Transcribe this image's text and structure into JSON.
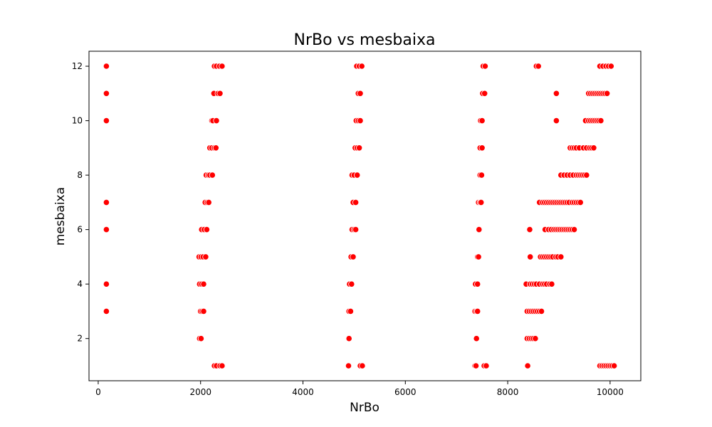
{
  "chart_data": {
    "type": "scatter",
    "title": "NrBo vs mesbaixa",
    "xlabel": "NrBo",
    "ylabel": "mesbaixa",
    "xlim": [
      -180,
      10600
    ],
    "ylim": [
      0.45,
      12.55
    ],
    "xticks": [
      0,
      2000,
      4000,
      6000,
      8000,
      10000
    ],
    "yticks": [
      2,
      4,
      6,
      8,
      10,
      12
    ],
    "grid": false,
    "legend": "none",
    "point_color": "#ff0000",
    "point_edge_color": "#ffffff",
    "series": [
      {
        "points": [
          [
            160,
            12
          ],
          [
            160,
            11
          ],
          [
            160,
            10
          ],
          [
            160,
            7
          ],
          [
            160,
            6
          ],
          [
            160,
            4
          ],
          [
            160,
            3
          ],
          [
            2270,
            12
          ],
          [
            2310,
            12
          ],
          [
            2370,
            12
          ],
          [
            2420,
            12
          ],
          [
            2260,
            11
          ],
          [
            2340,
            11
          ],
          [
            2380,
            11
          ],
          [
            2220,
            10
          ],
          [
            2240,
            10
          ],
          [
            2310,
            10
          ],
          [
            2180,
            9
          ],
          [
            2220,
            9
          ],
          [
            2270,
            9
          ],
          [
            2300,
            9
          ],
          [
            2110,
            8
          ],
          [
            2150,
            8
          ],
          [
            2180,
            8
          ],
          [
            2230,
            8
          ],
          [
            2090,
            7
          ],
          [
            2130,
            7
          ],
          [
            2160,
            7
          ],
          [
            2020,
            6
          ],
          [
            2070,
            6
          ],
          [
            2120,
            6
          ],
          [
            1970,
            5
          ],
          [
            2010,
            5
          ],
          [
            2050,
            5
          ],
          [
            2100,
            5
          ],
          [
            1980,
            4
          ],
          [
            2020,
            4
          ],
          [
            2060,
            4
          ],
          [
            2000,
            3
          ],
          [
            2030,
            3
          ],
          [
            2060,
            3
          ],
          [
            1980,
            2
          ],
          [
            2010,
            2
          ],
          [
            2270,
            1
          ],
          [
            2310,
            1
          ],
          [
            2380,
            1
          ],
          [
            2420,
            1
          ],
          [
            5050,
            12
          ],
          [
            5100,
            12
          ],
          [
            5150,
            12
          ],
          [
            5080,
            11
          ],
          [
            5120,
            11
          ],
          [
            5040,
            10
          ],
          [
            5080,
            10
          ],
          [
            5120,
            10
          ],
          [
            5020,
            9
          ],
          [
            5060,
            9
          ],
          [
            5100,
            9
          ],
          [
            4960,
            8
          ],
          [
            5000,
            8
          ],
          [
            5060,
            8
          ],
          [
            4980,
            7
          ],
          [
            5030,
            7
          ],
          [
            4960,
            6
          ],
          [
            5000,
            6
          ],
          [
            5030,
            6
          ],
          [
            4940,
            5
          ],
          [
            4980,
            5
          ],
          [
            4910,
            4
          ],
          [
            4950,
            4
          ],
          [
            4900,
            3
          ],
          [
            4930,
            3
          ],
          [
            4900,
            2
          ],
          [
            4890,
            1
          ],
          [
            5120,
            1
          ],
          [
            5160,
            1
          ],
          [
            7520,
            12
          ],
          [
            7560,
            12
          ],
          [
            7510,
            11
          ],
          [
            7550,
            11
          ],
          [
            7470,
            10
          ],
          [
            7500,
            10
          ],
          [
            7460,
            9
          ],
          [
            7500,
            9
          ],
          [
            7460,
            8
          ],
          [
            7490,
            8
          ],
          [
            7430,
            7
          ],
          [
            7460,
            7
          ],
          [
            7480,
            7
          ],
          [
            7440,
            6
          ],
          [
            7410,
            5
          ],
          [
            7430,
            5
          ],
          [
            7370,
            4
          ],
          [
            7410,
            4
          ],
          [
            7360,
            3
          ],
          [
            7390,
            3
          ],
          [
            7410,
            3
          ],
          [
            7390,
            2
          ],
          [
            7360,
            1
          ],
          [
            7380,
            1
          ],
          [
            7540,
            1
          ],
          [
            7580,
            1
          ],
          [
            8560,
            12
          ],
          [
            8600,
            12
          ],
          [
            8950,
            11
          ],
          [
            9580,
            11
          ],
          [
            9620,
            11
          ],
          [
            9660,
            11
          ],
          [
            9700,
            11
          ],
          [
            9740,
            11
          ],
          [
            9780,
            11
          ],
          [
            9820,
            11
          ],
          [
            9860,
            11
          ],
          [
            9900,
            11
          ],
          [
            9940,
            11
          ],
          [
            8950,
            10
          ],
          [
            9520,
            10
          ],
          [
            9580,
            10
          ],
          [
            9620,
            10
          ],
          [
            9660,
            10
          ],
          [
            9700,
            10
          ],
          [
            9740,
            10
          ],
          [
            9780,
            10
          ],
          [
            9820,
            10
          ],
          [
            9800,
            12
          ],
          [
            9860,
            12
          ],
          [
            9920,
            12
          ],
          [
            9970,
            12
          ],
          [
            10020,
            12
          ],
          [
            9220,
            9
          ],
          [
            9260,
            9
          ],
          [
            9300,
            9
          ],
          [
            9340,
            9
          ],
          [
            9400,
            9
          ],
          [
            9480,
            9
          ],
          [
            9540,
            9
          ],
          [
            9600,
            9
          ],
          [
            9640,
            9
          ],
          [
            9680,
            9
          ],
          [
            9040,
            8
          ],
          [
            9100,
            8
          ],
          [
            9160,
            8
          ],
          [
            9220,
            8
          ],
          [
            9280,
            8
          ],
          [
            9340,
            8
          ],
          [
            9380,
            8
          ],
          [
            9420,
            8
          ],
          [
            9460,
            8
          ],
          [
            9500,
            8
          ],
          [
            9540,
            8
          ],
          [
            8620,
            7
          ],
          [
            8680,
            7
          ],
          [
            8720,
            7
          ],
          [
            8760,
            7
          ],
          [
            8800,
            7
          ],
          [
            8840,
            7
          ],
          [
            8880,
            7
          ],
          [
            8920,
            7
          ],
          [
            8960,
            7
          ],
          [
            9000,
            7
          ],
          [
            9040,
            7
          ],
          [
            9080,
            7
          ],
          [
            9120,
            7
          ],
          [
            9160,
            7
          ],
          [
            9200,
            7
          ],
          [
            9260,
            7
          ],
          [
            9300,
            7
          ],
          [
            9340,
            7
          ],
          [
            9380,
            7
          ],
          [
            9420,
            7
          ],
          [
            8430,
            6
          ],
          [
            8730,
            6
          ],
          [
            8800,
            6
          ],
          [
            8850,
            6
          ],
          [
            8900,
            6
          ],
          [
            8940,
            6
          ],
          [
            8980,
            6
          ],
          [
            9020,
            6
          ],
          [
            9060,
            6
          ],
          [
            9100,
            6
          ],
          [
            9140,
            6
          ],
          [
            9180,
            6
          ],
          [
            9220,
            6
          ],
          [
            9260,
            6
          ],
          [
            9300,
            6
          ],
          [
            8440,
            5
          ],
          [
            8640,
            5
          ],
          [
            8680,
            5
          ],
          [
            8720,
            5
          ],
          [
            8760,
            5
          ],
          [
            8800,
            5
          ],
          [
            8840,
            5
          ],
          [
            8880,
            5
          ],
          [
            8940,
            5
          ],
          [
            8980,
            5
          ],
          [
            9040,
            5
          ],
          [
            8360,
            4
          ],
          [
            8440,
            4
          ],
          [
            8480,
            4
          ],
          [
            8520,
            4
          ],
          [
            8560,
            4
          ],
          [
            8620,
            4
          ],
          [
            8680,
            4
          ],
          [
            8720,
            4
          ],
          [
            8760,
            4
          ],
          [
            8820,
            4
          ],
          [
            8860,
            4
          ],
          [
            8380,
            3
          ],
          [
            8420,
            3
          ],
          [
            8460,
            3
          ],
          [
            8500,
            3
          ],
          [
            8540,
            3
          ],
          [
            8580,
            3
          ],
          [
            8620,
            3
          ],
          [
            8660,
            3
          ],
          [
            8380,
            2
          ],
          [
            8420,
            2
          ],
          [
            8460,
            2
          ],
          [
            8500,
            2
          ],
          [
            8540,
            2
          ],
          [
            8390,
            1
          ],
          [
            9800,
            1
          ],
          [
            9840,
            1
          ],
          [
            9880,
            1
          ],
          [
            9920,
            1
          ],
          [
            9960,
            1
          ],
          [
            10000,
            1
          ],
          [
            10040,
            1
          ],
          [
            10080,
            1
          ]
        ]
      }
    ]
  }
}
